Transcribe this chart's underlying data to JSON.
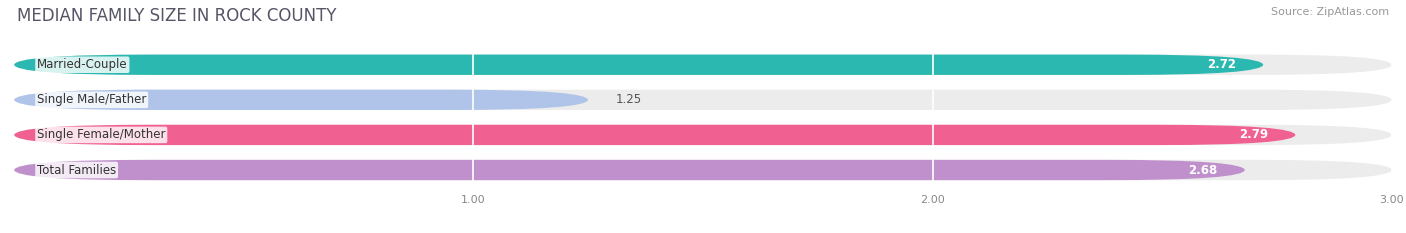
{
  "title": "MEDIAN FAMILY SIZE IN ROCK COUNTY",
  "source": "Source: ZipAtlas.com",
  "categories": [
    "Married-Couple",
    "Single Male/Father",
    "Single Female/Mother",
    "Total Families"
  ],
  "values": [
    2.72,
    1.25,
    2.79,
    2.68
  ],
  "bar_colors": [
    "#2ab8b0",
    "#b0c4ea",
    "#f06090",
    "#c090cc"
  ],
  "xlim": [
    0,
    3.0
  ],
  "xticks": [
    1.0,
    2.0,
    3.0
  ],
  "bar_height": 0.62,
  "label_fontsize": 8.5,
  "value_fontsize": 8.5,
  "title_fontsize": 12,
  "source_fontsize": 8,
  "fig_bg": "#ffffff",
  "bar_bg": "#ececec"
}
